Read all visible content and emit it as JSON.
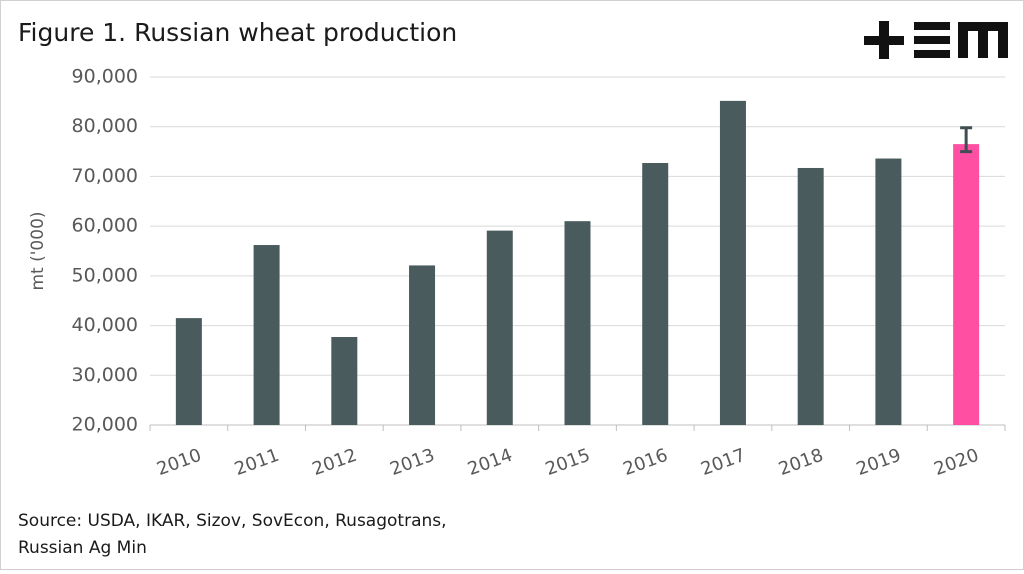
{
  "chart_data": {
    "type": "bar",
    "title": "Figure 1. Russian wheat production",
    "y_label": "mt ('000)",
    "source": [
      "Source: USDA, IKAR, Sizov, SovEcon, Rusagotrans,",
      "Russian Ag Min"
    ],
    "categories": [
      "2010",
      "2011",
      "2012",
      "2013",
      "2014",
      "2015",
      "2016",
      "2017",
      "2018",
      "2019",
      "2020"
    ],
    "values": [
      41500,
      56200,
      37700,
      52100,
      59100,
      61000,
      72700,
      85200,
      71700,
      73600,
      76500
    ],
    "colors": [
      "#4a5b5d",
      "#4a5b5d",
      "#4a5b5d",
      "#4a5b5d",
      "#4a5b5d",
      "#4a5b5d",
      "#4a5b5d",
      "#4a5b5d",
      "#4a5b5d",
      "#4a5b5d",
      "#ff4fa3"
    ],
    "error_minus": [
      null,
      null,
      null,
      null,
      null,
      null,
      null,
      null,
      null,
      null,
      1500
    ],
    "error_plus": [
      null,
      null,
      null,
      null,
      null,
      null,
      null,
      null,
      null,
      null,
      3300
    ],
    "ylim": [
      20000,
      90000
    ],
    "yticks": [
      {
        "value": 20000,
        "label": "20,000"
      },
      {
        "value": 30000,
        "label": "30,000"
      },
      {
        "value": 40000,
        "label": "40,000"
      },
      {
        "value": 50000,
        "label": "50,000"
      },
      {
        "value": 60000,
        "label": "60,000"
      },
      {
        "value": 70000,
        "label": "70,000"
      },
      {
        "value": 80000,
        "label": "80,000"
      },
      {
        "value": 90000,
        "label": "90,000"
      }
    ],
    "grid": true
  }
}
